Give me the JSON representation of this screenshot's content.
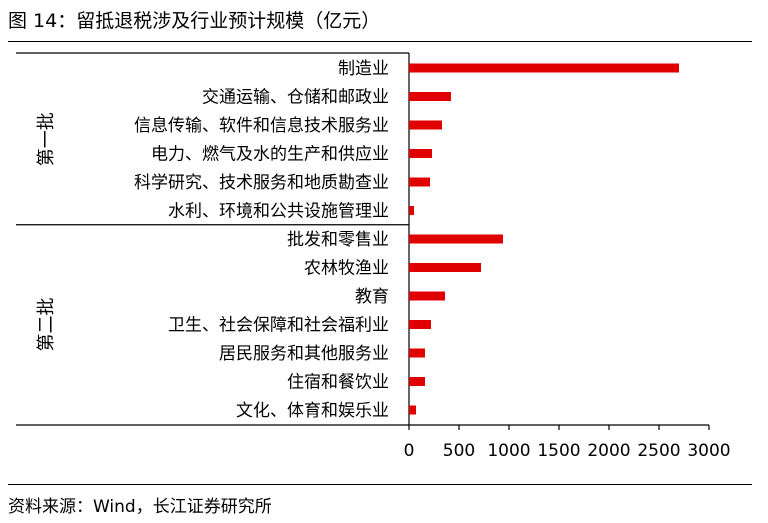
{
  "title": "图 14：留抵退税涉及行业预计规模（亿元）",
  "source": "资料来源：Wind，长江证券研究所",
  "chart_data": {
    "type": "bar",
    "orientation": "horizontal",
    "title": "图 14：留抵退税涉及行业预计规模（亿元）",
    "xlim": [
      0,
      3000
    ],
    "xticks": [
      0,
      500,
      1000,
      1500,
      2000,
      2500,
      3000
    ],
    "bar_color": "#e00000",
    "groups": [
      {
        "label": "第一批",
        "categories": [
          "制造业",
          "交通运输、仓储和邮政业",
          "信息传输、软件和信息技术服务业",
          "电力、燃气及水的生产和供应业",
          "科学研究、技术服务和地质勘查业",
          "水利、环境和公共设施管理业"
        ],
        "values": [
          2700,
          420,
          330,
          230,
          210,
          50
        ]
      },
      {
        "label": "第二批",
        "categories": [
          "批发和零售业",
          "农林牧渔业",
          "教育",
          "卫生、社会保障和社会福利业",
          "居民服务和其他服务业",
          "住宿和餐饮业",
          "文化、体育和娱乐业"
        ],
        "values": [
          940,
          720,
          360,
          220,
          160,
          160,
          70
        ]
      }
    ]
  }
}
